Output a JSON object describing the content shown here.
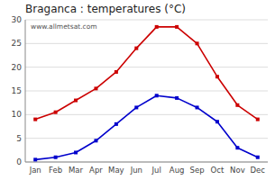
{
  "chart_data": {
    "type": "line",
    "title": "Braganca : temperatures (°C)",
    "categories": [
      "Jan",
      "Feb",
      "Mar",
      "Apr",
      "May",
      "Jun",
      "Jul",
      "Aug",
      "Sep",
      "Oct",
      "Nov",
      "Dec"
    ],
    "series": [
      {
        "color": "#cc0000",
        "marker": "square",
        "values": [
          9,
          10.5,
          13,
          15.5,
          19,
          24,
          28.5,
          28.5,
          25,
          18,
          12,
          9
        ]
      },
      {
        "color": "#0000cc",
        "marker": "square",
        "values": [
          0.5,
          1,
          2,
          4.5,
          8,
          11.5,
          14,
          13.5,
          11.5,
          8.5,
          3,
          1
        ]
      }
    ],
    "ylim": [
      0,
      30
    ],
    "yticks": [
      0,
      5,
      10,
      15,
      20,
      25,
      30
    ],
    "grid": true,
    "annotations": [
      "www.allmetsat.com"
    ]
  }
}
